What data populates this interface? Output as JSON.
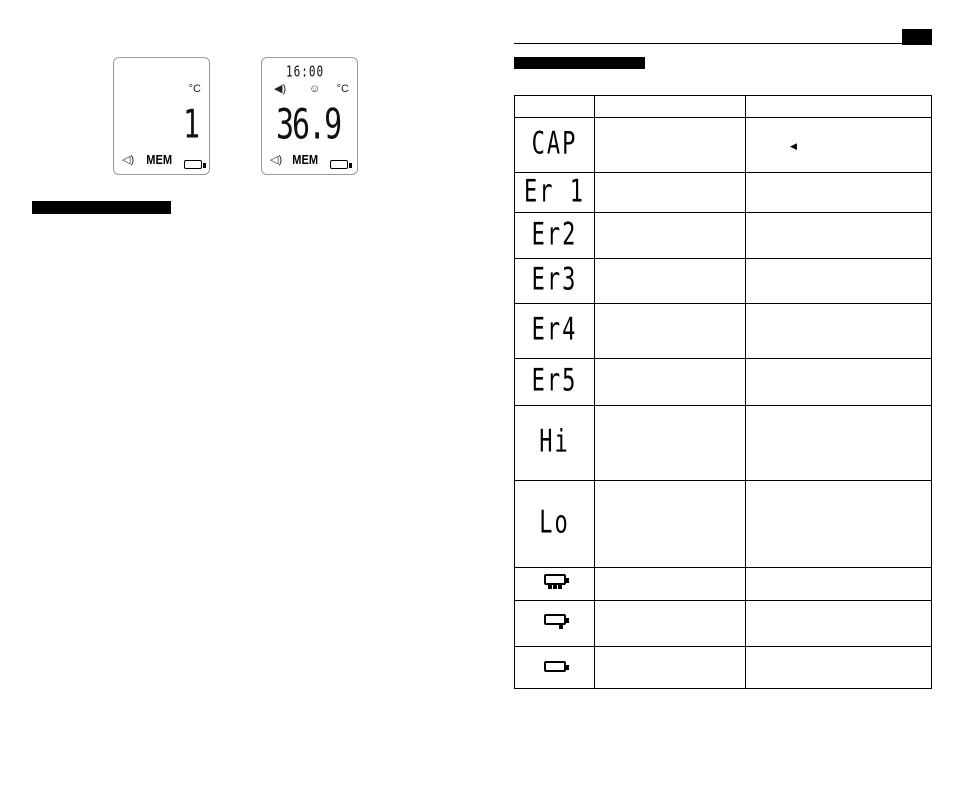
{
  "lcd_left": {
    "unit": "°C",
    "value": "1",
    "sound_icon": "speaker-icon",
    "mem_label": "MEM",
    "battery_icon": "battery-full-icon"
  },
  "lcd_right": {
    "time": "16:00",
    "mode_icon": "ear-icon",
    "status_icon": "smiley-icon",
    "unit": "°C",
    "value": "36.9",
    "sound_icon": "speaker-icon",
    "mem_label": "MEM",
    "battery_icon": "battery-full-icon"
  },
  "table": {
    "rows": [
      {
        "code": "CAP"
      },
      {
        "code": "Er 1"
      },
      {
        "code": "Er2"
      },
      {
        "code": "Er3"
      },
      {
        "code": "Er4"
      },
      {
        "code": "Er5"
      },
      {
        "code": "Hi"
      },
      {
        "code": "Lo"
      },
      {
        "icon": "battery-full-icon"
      },
      {
        "icon": "battery-half-icon"
      },
      {
        "icon": "battery-empty-icon"
      }
    ]
  }
}
